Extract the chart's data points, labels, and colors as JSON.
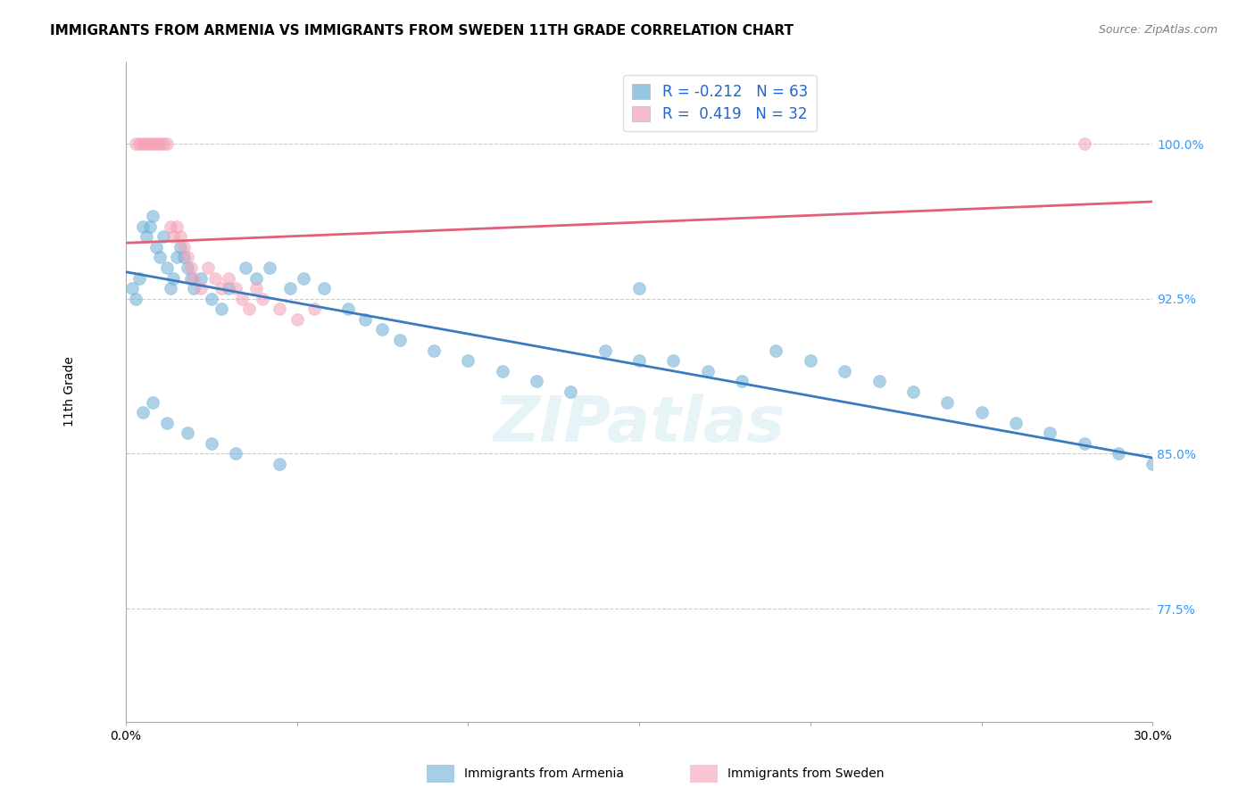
{
  "title": "IMMIGRANTS FROM ARMENIA VS IMMIGRANTS FROM SWEDEN 11TH GRADE CORRELATION CHART",
  "source": "Source: ZipAtlas.com",
  "ylabel": "11th Grade",
  "ytick_labels": [
    "77.5%",
    "85.0%",
    "92.5%",
    "100.0%"
  ],
  "ytick_values": [
    0.775,
    0.85,
    0.925,
    1.0
  ],
  "xlim": [
    0.0,
    0.3
  ],
  "ylim": [
    0.72,
    1.04
  ],
  "legend_blue_r": "-0.212",
  "legend_blue_n": "63",
  "legend_pink_r": "0.419",
  "legend_pink_n": "32",
  "blue_color": "#6baed6",
  "pink_color": "#f4a0b5",
  "blue_line_color": "#3a7abf",
  "pink_line_color": "#e0607a",
  "blue_scatter_x": [
    0.002,
    0.003,
    0.004,
    0.005,
    0.006,
    0.007,
    0.008,
    0.009,
    0.01,
    0.011,
    0.012,
    0.013,
    0.014,
    0.015,
    0.016,
    0.017,
    0.018,
    0.019,
    0.02,
    0.022,
    0.025,
    0.028,
    0.03,
    0.035,
    0.038,
    0.042,
    0.048,
    0.052,
    0.058,
    0.065,
    0.07,
    0.075,
    0.08,
    0.09,
    0.1,
    0.11,
    0.12,
    0.13,
    0.14,
    0.15,
    0.16,
    0.17,
    0.18,
    0.19,
    0.2,
    0.21,
    0.22,
    0.23,
    0.24,
    0.25,
    0.26,
    0.27,
    0.28,
    0.29,
    0.3,
    0.005,
    0.008,
    0.012,
    0.018,
    0.025,
    0.032,
    0.045,
    0.15
  ],
  "blue_scatter_y": [
    0.93,
    0.925,
    0.935,
    0.96,
    0.955,
    0.96,
    0.965,
    0.95,
    0.945,
    0.955,
    0.94,
    0.93,
    0.935,
    0.945,
    0.95,
    0.945,
    0.94,
    0.935,
    0.93,
    0.935,
    0.925,
    0.92,
    0.93,
    0.94,
    0.935,
    0.94,
    0.93,
    0.935,
    0.93,
    0.92,
    0.915,
    0.91,
    0.905,
    0.9,
    0.895,
    0.89,
    0.885,
    0.88,
    0.9,
    0.895,
    0.895,
    0.89,
    0.885,
    0.9,
    0.895,
    0.89,
    0.885,
    0.88,
    0.875,
    0.87,
    0.865,
    0.86,
    0.855,
    0.85,
    0.845,
    0.87,
    0.875,
    0.865,
    0.86,
    0.855,
    0.85,
    0.845,
    0.93
  ],
  "pink_scatter_x": [
    0.003,
    0.004,
    0.005,
    0.006,
    0.007,
    0.008,
    0.009,
    0.01,
    0.011,
    0.012,
    0.013,
    0.014,
    0.015,
    0.016,
    0.017,
    0.018,
    0.019,
    0.02,
    0.022,
    0.024,
    0.026,
    0.028,
    0.03,
    0.032,
    0.034,
    0.036,
    0.038,
    0.04,
    0.045,
    0.05,
    0.055,
    0.28
  ],
  "pink_scatter_y": [
    1.0,
    1.0,
    1.0,
    1.0,
    1.0,
    1.0,
    1.0,
    1.0,
    1.0,
    1.0,
    0.96,
    0.955,
    0.96,
    0.955,
    0.95,
    0.945,
    0.94,
    0.935,
    0.93,
    0.94,
    0.935,
    0.93,
    0.935,
    0.93,
    0.925,
    0.92,
    0.93,
    0.925,
    0.92,
    0.915,
    0.92,
    1.0
  ],
  "blue_line_x": [
    0.0,
    0.3
  ],
  "blue_line_y": [
    0.938,
    0.848
  ],
  "pink_line_x": [
    0.0,
    0.3
  ],
  "pink_line_y": [
    0.952,
    0.972
  ],
  "watermark": "ZIPatlas",
  "title_fontsize": 11,
  "axis_label_fontsize": 10,
  "tick_fontsize": 10,
  "legend_fontsize": 12,
  "scatter_size": 100
}
